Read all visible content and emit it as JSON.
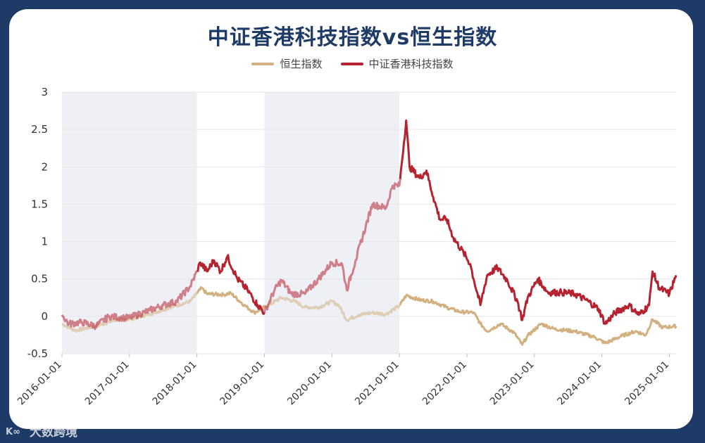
{
  "chart_data": {
    "type": "line",
    "title": "中证香港科技指数vs恒生指数",
    "ylim": [
      -0.5,
      3
    ],
    "y_ticks": [
      "3",
      "2.5",
      "2",
      "1.5",
      "1",
      "0.5",
      "0",
      "-0.5"
    ],
    "x_ticks": [
      "2016-01-01",
      "2017-01-01",
      "2018-01-01",
      "2019-01-01",
      "2020-01-01",
      "2021-01-01",
      "2022-01-01",
      "2023-01-01",
      "2024-01-01",
      "2025-01-01"
    ],
    "x_range": [
      2016.0,
      2025.1
    ],
    "shaded_periods": [
      [
        2016.0,
        2018.0
      ],
      [
        2019.0,
        2021.0
      ]
    ],
    "series": [
      {
        "name": "恒生指数",
        "color": "#d2b07f",
        "points": [
          [
            2016.0,
            -0.1
          ],
          [
            2016.2,
            -0.19
          ],
          [
            2016.5,
            -0.13
          ],
          [
            2016.8,
            -0.05
          ],
          [
            2017.0,
            -0.04
          ],
          [
            2017.3,
            0.03
          ],
          [
            2017.6,
            0.12
          ],
          [
            2017.9,
            0.2
          ],
          [
            2018.07,
            0.38
          ],
          [
            2018.15,
            0.3
          ],
          [
            2018.4,
            0.29
          ],
          [
            2018.5,
            0.31
          ],
          [
            2018.7,
            0.15
          ],
          [
            2018.85,
            0.05
          ],
          [
            2019.0,
            0.12
          ],
          [
            2019.25,
            0.25
          ],
          [
            2019.45,
            0.2
          ],
          [
            2019.6,
            0.12
          ],
          [
            2019.8,
            0.12
          ],
          [
            2020.0,
            0.2
          ],
          [
            2020.1,
            0.15
          ],
          [
            2020.22,
            -0.05
          ],
          [
            2020.4,
            0.02
          ],
          [
            2020.6,
            0.05
          ],
          [
            2020.8,
            0.03
          ],
          [
            2021.0,
            0.14
          ],
          [
            2021.1,
            0.28
          ],
          [
            2021.3,
            0.22
          ],
          [
            2021.5,
            0.2
          ],
          [
            2021.7,
            0.12
          ],
          [
            2021.9,
            0.06
          ],
          [
            2022.1,
            0.05
          ],
          [
            2022.2,
            -0.1
          ],
          [
            2022.3,
            -0.2
          ],
          [
            2022.5,
            -0.1
          ],
          [
            2022.7,
            -0.22
          ],
          [
            2022.82,
            -0.38
          ],
          [
            2022.9,
            -0.26
          ],
          [
            2023.1,
            -0.1
          ],
          [
            2023.3,
            -0.17
          ],
          [
            2023.6,
            -0.2
          ],
          [
            2023.9,
            -0.28
          ],
          [
            2024.05,
            -0.36
          ],
          [
            2024.3,
            -0.26
          ],
          [
            2024.5,
            -0.2
          ],
          [
            2024.65,
            -0.25
          ],
          [
            2024.75,
            -0.04
          ],
          [
            2024.9,
            -0.15
          ],
          [
            2025.1,
            -0.13
          ]
        ]
      },
      {
        "name": "中证香港科技指数",
        "color": "#b52330",
        "points": [
          [
            2016.0,
            0.02
          ],
          [
            2016.1,
            -0.1
          ],
          [
            2016.3,
            -0.08
          ],
          [
            2016.5,
            -0.13
          ],
          [
            2016.7,
            0.0
          ],
          [
            2016.9,
            -0.02
          ],
          [
            2017.0,
            -0.02
          ],
          [
            2017.3,
            0.08
          ],
          [
            2017.5,
            0.15
          ],
          [
            2017.7,
            0.2
          ],
          [
            2017.9,
            0.4
          ],
          [
            2018.0,
            0.6
          ],
          [
            2018.05,
            0.72
          ],
          [
            2018.15,
            0.6
          ],
          [
            2018.25,
            0.75
          ],
          [
            2018.35,
            0.6
          ],
          [
            2018.45,
            0.8
          ],
          [
            2018.6,
            0.5
          ],
          [
            2018.75,
            0.35
          ],
          [
            2018.9,
            0.15
          ],
          [
            2019.0,
            0.05
          ],
          [
            2019.15,
            0.35
          ],
          [
            2019.25,
            0.48
          ],
          [
            2019.4,
            0.3
          ],
          [
            2019.6,
            0.3
          ],
          [
            2019.8,
            0.5
          ],
          [
            2020.0,
            0.72
          ],
          [
            2020.15,
            0.7
          ],
          [
            2020.22,
            0.35
          ],
          [
            2020.35,
            0.75
          ],
          [
            2020.5,
            1.2
          ],
          [
            2020.6,
            1.5
          ],
          [
            2020.8,
            1.45
          ],
          [
            2020.9,
            1.75
          ],
          [
            2021.0,
            1.75
          ],
          [
            2021.1,
            2.62
          ],
          [
            2021.15,
            2.0
          ],
          [
            2021.3,
            1.85
          ],
          [
            2021.4,
            1.95
          ],
          [
            2021.5,
            1.6
          ],
          [
            2021.6,
            1.3
          ],
          [
            2021.7,
            1.3
          ],
          [
            2021.8,
            1.05
          ],
          [
            2021.95,
            0.85
          ],
          [
            2022.05,
            0.7
          ],
          [
            2022.1,
            0.5
          ],
          [
            2022.2,
            0.15
          ],
          [
            2022.3,
            0.55
          ],
          [
            2022.45,
            0.65
          ],
          [
            2022.6,
            0.48
          ],
          [
            2022.75,
            0.2
          ],
          [
            2022.82,
            -0.05
          ],
          [
            2022.9,
            0.25
          ],
          [
            2023.05,
            0.5
          ],
          [
            2023.2,
            0.32
          ],
          [
            2023.4,
            0.32
          ],
          [
            2023.6,
            0.3
          ],
          [
            2023.8,
            0.2
          ],
          [
            2023.95,
            0.1
          ],
          [
            2024.05,
            -0.1
          ],
          [
            2024.2,
            0.05
          ],
          [
            2024.4,
            0.15
          ],
          [
            2024.55,
            0.02
          ],
          [
            2024.7,
            0.15
          ],
          [
            2024.75,
            0.6
          ],
          [
            2024.85,
            0.38
          ],
          [
            2025.0,
            0.3
          ],
          [
            2025.1,
            0.55
          ]
        ]
      }
    ]
  },
  "watermark": {
    "text": "大数跨境"
  }
}
